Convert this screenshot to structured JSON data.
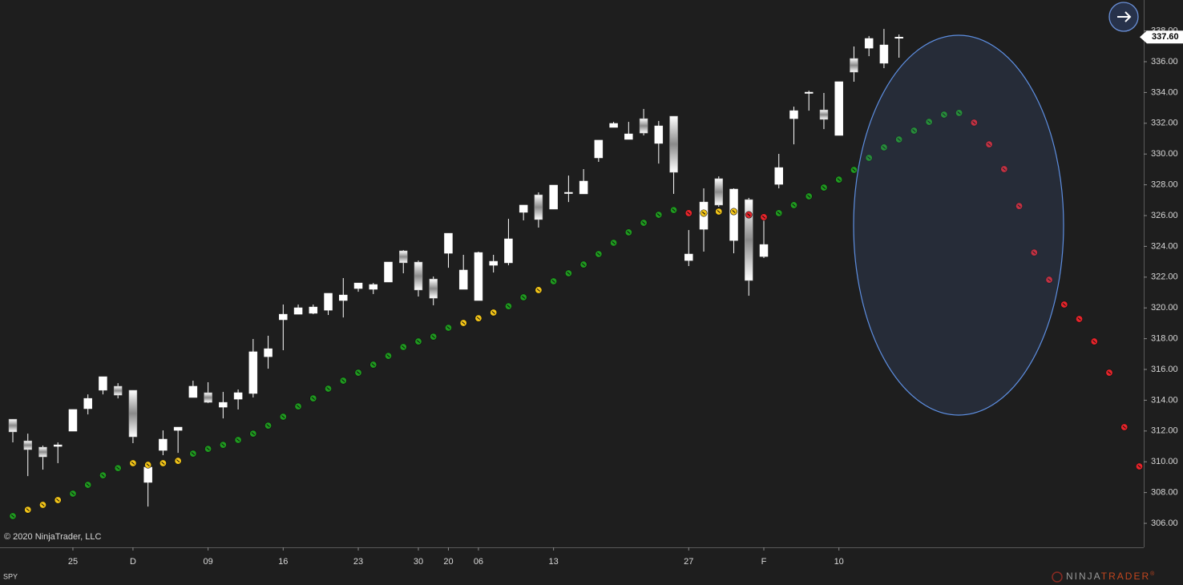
{
  "chart_data": {
    "type": "candlestick",
    "instrument": "SPY",
    "copyright": "© 2020 NinjaTrader, LLC",
    "logo": {
      "left": "NINJA",
      "right": "TRADER",
      "mark": "®"
    },
    "last_price": {
      "value": 337.6,
      "label": "337.60"
    },
    "ylim": [
      304.44,
      340.01
    ],
    "yticks": [
      {
        "value": 306,
        "label": "306.00"
      },
      {
        "value": 308,
        "label": "308.00"
      },
      {
        "value": 310,
        "label": "310.00"
      },
      {
        "value": 312,
        "label": "312.00"
      },
      {
        "value": 314,
        "label": "314.00"
      },
      {
        "value": 316,
        "label": "316.00"
      },
      {
        "value": 318,
        "label": "318.00"
      },
      {
        "value": 320,
        "label": "320.00"
      },
      {
        "value": 322,
        "label": "322.00"
      },
      {
        "value": 324,
        "label": "324.00"
      },
      {
        "value": 326,
        "label": "326.00"
      },
      {
        "value": 328,
        "label": "328.00"
      },
      {
        "value": 330,
        "label": "330.00"
      },
      {
        "value": 332,
        "label": "332.00"
      },
      {
        "value": 334,
        "label": "334.00"
      },
      {
        "value": 336,
        "label": "336.00"
      },
      {
        "value": 338,
        "label": "338.00"
      }
    ],
    "categories": [
      null,
      null,
      null,
      null,
      "25",
      null,
      null,
      null,
      "D",
      null,
      null,
      null,
      null,
      "09",
      null,
      null,
      null,
      null,
      "16",
      null,
      null,
      null,
      null,
      "23",
      null,
      null,
      null,
      "30",
      null,
      "20",
      null,
      "06",
      null,
      null,
      null,
      null,
      "13",
      null,
      null,
      null,
      null,
      null,
      null,
      null,
      null,
      "27",
      null,
      null,
      null,
      null,
      "F",
      null,
      null,
      null,
      null,
      "10",
      null,
      null,
      null,
      null,
      null,
      null,
      null,
      null,
      null,
      null,
      null,
      null,
      null,
      null,
      null,
      null,
      null,
      null,
      null,
      null
    ],
    "up_color": "#ffffff",
    "down_color": "#9a9a9a",
    "open": [
      312.77,
      311.36,
      310.95,
      311.0,
      311.99,
      313.45,
      314.65,
      314.91,
      314.65,
      308.66,
      310.74,
      312.04,
      314.18,
      314.49,
      313.55,
      314.07,
      314.44,
      316.83,
      319.23,
      319.59,
      319.65,
      319.85,
      320.48,
      321.26,
      321.21,
      321.68,
      323.71,
      322.98,
      321.88,
      323.55,
      321.21,
      320.48,
      322.77,
      322.93,
      326.21,
      327.35,
      326.42,
      327.46,
      327.41,
      329.75,
      331.73,
      330.95,
      332.3,
      330.69,
      332.46,
      323.08,
      325.11,
      328.4,
      324.38,
      327.04,
      323.34,
      328.03,
      332.3,
      333.97,
      332.87,
      331.21,
      336.21,
      336.88,
      335.9,
      337.56,
      null,
      null,
      null,
      null,
      null,
      null,
      null,
      null,
      null,
      null,
      null,
      null,
      null,
      null,
      null,
      null
    ],
    "high": [
      312.77,
      311.83,
      311.05,
      311.26,
      313.4,
      314.38,
      315.53,
      315.11,
      314.65,
      309.96,
      312.04,
      312.25,
      315.27,
      315.17,
      314.54,
      314.7,
      317.98,
      318.19,
      320.22,
      320.22,
      320.22,
      320.95,
      321.94,
      321.62,
      321.62,
      322.98,
      323.76,
      323.08,
      322.04,
      324.85,
      323.45,
      323.66,
      323.45,
      325.79,
      326.68,
      327.51,
      327.98,
      328.6,
      329.02,
      330.9,
      332.09,
      332.09,
      332.93,
      332.15,
      332.46,
      325.06,
      327.77,
      328.55,
      327.77,
      327.15,
      326.05,
      330.01,
      333.08,
      334.12,
      333.97,
      334.7,
      336.99,
      337.67,
      338.13,
      337.77,
      null,
      null,
      null,
      null,
      null,
      null,
      null,
      null,
      null,
      null,
      null,
      null,
      null,
      null,
      null,
      null
    ],
    "low": [
      311.26,
      309.07,
      309.49,
      309.91,
      311.99,
      313.08,
      314.38,
      314.12,
      311.21,
      307.09,
      310.43,
      310.58,
      314.18,
      313.81,
      312.82,
      313.4,
      314.18,
      316.05,
      317.25,
      319.59,
      319.59,
      319.54,
      319.38,
      321.05,
      320.9,
      321.68,
      322.25,
      320.74,
      320.17,
      322.61,
      321.21,
      320.48,
      322.3,
      322.77,
      325.69,
      325.22,
      326.42,
      326.88,
      327.41,
      329.49,
      331.73,
      330.95,
      331.21,
      329.38,
      327.41,
      322.72,
      323.66,
      326.57,
      323.55,
      320.79,
      323.24,
      327.77,
      330.63,
      332.82,
      331.62,
      331.21,
      334.7,
      336.36,
      335.58,
      336.26,
      null,
      null,
      null,
      null,
      null,
      null,
      null,
      null,
      null,
      null,
      null,
      null,
      null,
      null,
      null,
      null
    ],
    "close": [
      311.94,
      310.79,
      310.32,
      311.1,
      313.4,
      314.12,
      315.53,
      314.33,
      311.62,
      309.65,
      311.47,
      312.25,
      314.91,
      313.86,
      313.86,
      314.49,
      317.15,
      317.35,
      319.59,
      320.01,
      320.06,
      320.95,
      320.84,
      321.62,
      321.52,
      322.98,
      322.93,
      321.16,
      320.63,
      324.85,
      322.46,
      323.6,
      323.03,
      324.49,
      326.68,
      325.74,
      327.98,
      327.51,
      328.24,
      330.9,
      331.99,
      331.31,
      331.36,
      331.83,
      328.81,
      323.5,
      326.88,
      326.68,
      327.72,
      321.78,
      324.12,
      329.12,
      332.82,
      334.02,
      332.25,
      334.7,
      335.32,
      337.51,
      337.09,
      337.6,
      null,
      null,
      null,
      null,
      null,
      null,
      null,
      null,
      null,
      null,
      null,
      null,
      null,
      null,
      null,
      null
    ],
    "series": [
      {
        "color": "#1f9a1f",
        "values": [
          306.47,
          null,
          null,
          null,
          307.93,
          308.5,
          309.12,
          309.59,
          null,
          null,
          null,
          null,
          310.53,
          310.84,
          311.1,
          311.42,
          311.83,
          312.35,
          312.93,
          313.6,
          314.12,
          314.75,
          315.27,
          315.79,
          316.31,
          316.88,
          317.46,
          317.82,
          318.13,
          318.71,
          null,
          null,
          null,
          320.11,
          320.69,
          null,
          321.73,
          322.25,
          322.82,
          323.5,
          324.23,
          324.91,
          325.53,
          326.05,
          326.36,
          null,
          null,
          null,
          null,
          null,
          null,
          326.16,
          326.68,
          327.25,
          327.82,
          328.34,
          328.97,
          329.75,
          330.43,
          330.95,
          331.52,
          332.09,
          332.56,
          332.67,
          null,
          null,
          null,
          null,
          null,
          null,
          null,
          null,
          null,
          null,
          null,
          null
        ]
      },
      {
        "color": "#f2c418",
        "values": [
          null,
          306.88,
          307.2,
          307.51,
          null,
          null,
          null,
          null,
          309.91,
          309.8,
          309.91,
          310.06,
          null,
          null,
          null,
          null,
          null,
          null,
          null,
          null,
          null,
          null,
          null,
          null,
          null,
          null,
          null,
          null,
          null,
          null,
          319.02,
          319.33,
          319.7,
          null,
          null,
          321.16,
          null,
          null,
          null,
          null,
          null,
          null,
          null,
          null,
          null,
          null,
          326.16,
          326.26,
          326.26,
          null,
          null,
          null,
          null,
          null,
          null,
          null,
          null,
          null,
          null,
          null,
          null,
          null,
          null,
          null,
          null,
          null,
          null,
          null,
          null,
          null,
          null,
          null,
          null,
          null,
          null,
          null
        ]
      },
      {
        "color": "#e8242a",
        "values": [
          null,
          null,
          null,
          null,
          null,
          null,
          null,
          null,
          null,
          null,
          null,
          null,
          null,
          null,
          null,
          null,
          null,
          null,
          null,
          null,
          null,
          null,
          null,
          null,
          null,
          null,
          null,
          null,
          null,
          null,
          null,
          null,
          null,
          null,
          null,
          null,
          null,
          null,
          null,
          null,
          null,
          null,
          null,
          null,
          null,
          326.16,
          null,
          null,
          null,
          326.05,
          325.9,
          null,
          null,
          null,
          null,
          null,
          null,
          null,
          null,
          null,
          null,
          null,
          null,
          null,
          332.04,
          330.63,
          329.02,
          326.62,
          323.6,
          321.83,
          320.22,
          319.28,
          317.82,
          315.79,
          312.25,
          309.7
        ]
      }
    ]
  }
}
